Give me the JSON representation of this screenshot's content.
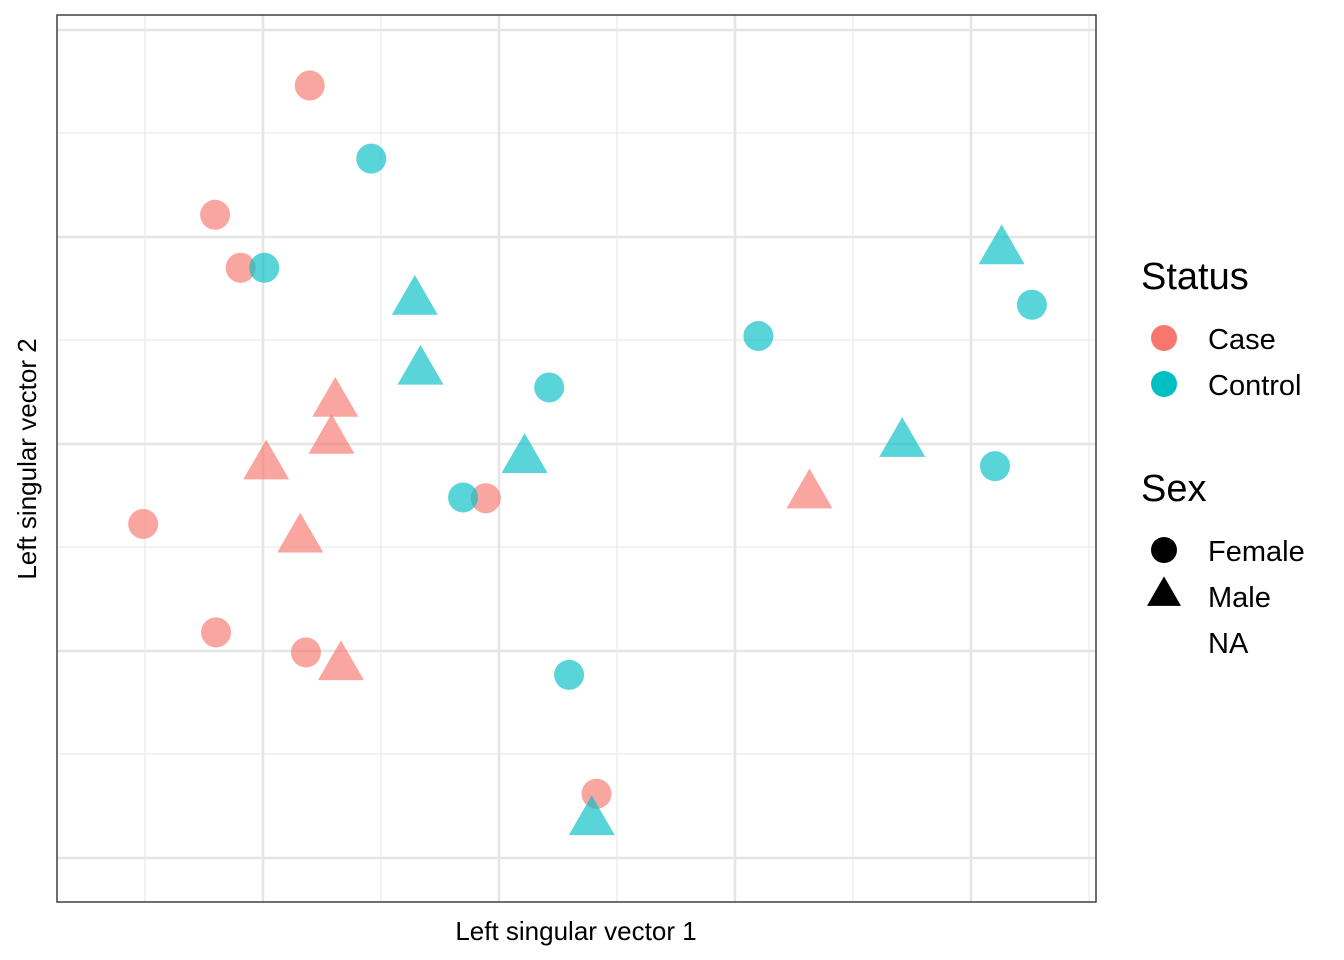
{
  "chart_data": {
    "type": "scatter",
    "xlabel": "Left singular vector 1",
    "ylabel": "Left singular vector 2",
    "xlim": [
      0,
      1
    ],
    "ylim": [
      0,
      1
    ],
    "grid": true,
    "tick_labels_shown": false,
    "legend_placement": "right",
    "colors": {
      "Case": "#F8766D",
      "Control": "#00BFC4"
    },
    "legends": [
      {
        "title": "Status",
        "entries": [
          {
            "label": "Case",
            "shape": "circle",
            "color": "#F8766D"
          },
          {
            "label": "Control",
            "shape": "circle",
            "color": "#00BFC4"
          }
        ]
      },
      {
        "title": "Sex",
        "entries": [
          {
            "label": "Female",
            "shape": "circle",
            "color": "#000000"
          },
          {
            "label": "Male",
            "shape": "triangle",
            "color": "#000000"
          },
          {
            "label": "NA",
            "shape": "none",
            "color": "#000000"
          }
        ]
      }
    ],
    "points": [
      {
        "x": 0.22,
        "y": 0.962,
        "status": "Case",
        "sex": "Female"
      },
      {
        "x": 0.12,
        "y": 0.801,
        "status": "Case",
        "sex": "Female"
      },
      {
        "x": 0.147,
        "y": 0.735,
        "status": "Case",
        "sex": "Female"
      },
      {
        "x": 0.044,
        "y": 0.416,
        "status": "Case",
        "sex": "Female"
      },
      {
        "x": 0.121,
        "y": 0.281,
        "status": "Case",
        "sex": "Female"
      },
      {
        "x": 0.216,
        "y": 0.256,
        "status": "Case",
        "sex": "Female"
      },
      {
        "x": 0.406,
        "y": 0.448,
        "status": "Case",
        "sex": "Female"
      },
      {
        "x": 0.523,
        "y": 0.08,
        "status": "Case",
        "sex": "Female"
      },
      {
        "x": 0.247,
        "y": 0.566,
        "status": "Case",
        "sex": "Male"
      },
      {
        "x": 0.243,
        "y": 0.52,
        "status": "Case",
        "sex": "Male"
      },
      {
        "x": 0.174,
        "y": 0.488,
        "status": "Case",
        "sex": "Male"
      },
      {
        "x": 0.21,
        "y": 0.397,
        "status": "Case",
        "sex": "Male"
      },
      {
        "x": 0.253,
        "y": 0.238,
        "status": "Case",
        "sex": "Male"
      },
      {
        "x": 0.748,
        "y": 0.452,
        "status": "Case",
        "sex": "Male"
      },
      {
        "x": 0.285,
        "y": 0.871,
        "status": "Control",
        "sex": "Female"
      },
      {
        "x": 0.172,
        "y": 0.735,
        "status": "Control",
        "sex": "Female"
      },
      {
        "x": 0.473,
        "y": 0.586,
        "status": "Control",
        "sex": "Female"
      },
      {
        "x": 0.382,
        "y": 0.449,
        "status": "Control",
        "sex": "Female"
      },
      {
        "x": 0.494,
        "y": 0.228,
        "status": "Control",
        "sex": "Female"
      },
      {
        "x": 0.694,
        "y": 0.65,
        "status": "Control",
        "sex": "Female"
      },
      {
        "x": 0.944,
        "y": 0.488,
        "status": "Control",
        "sex": "Female"
      },
      {
        "x": 0.983,
        "y": 0.689,
        "status": "Control",
        "sex": "Female"
      },
      {
        "x": 0.331,
        "y": 0.693,
        "status": "Control",
        "sex": "Male"
      },
      {
        "x": 0.337,
        "y": 0.606,
        "status": "Control",
        "sex": "Male"
      },
      {
        "x": 0.447,
        "y": 0.496,
        "status": "Control",
        "sex": "Male"
      },
      {
        "x": 0.518,
        "y": 0.045,
        "status": "Control",
        "sex": "Male"
      },
      {
        "x": 0.846,
        "y": 0.516,
        "status": "Control",
        "sex": "Male"
      },
      {
        "x": 0.951,
        "y": 0.756,
        "status": "Control",
        "sex": "Male"
      }
    ]
  }
}
